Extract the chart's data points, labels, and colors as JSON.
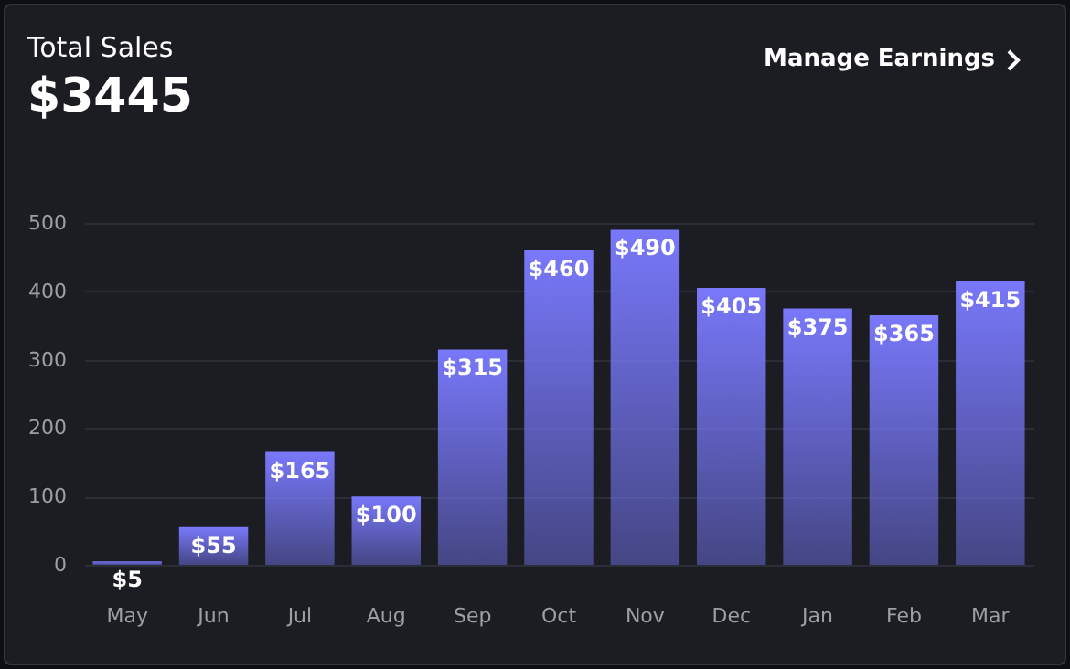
{
  "chart_data": {
    "type": "bar",
    "title": "Total Sales",
    "subtitle": "$3445",
    "annotations": [
      "Manage Earnings"
    ],
    "categories": [
      "May",
      "Jun",
      "Jul",
      "Aug",
      "Sep",
      "Oct",
      "Nov",
      "Dec",
      "Jan",
      "Feb",
      "Mar"
    ],
    "values": [
      5,
      55,
      165,
      100,
      315,
      460,
      490,
      405,
      375,
      365,
      415
    ],
    "value_labels": [
      "$5",
      "$55",
      "$165",
      "$100",
      "$315",
      "$460",
      "$490",
      "$405",
      "$375",
      "$365",
      "$415"
    ],
    "color": "#7878fa",
    "ylim": [
      0,
      500
    ],
    "yticks": [
      0,
      100,
      200,
      300,
      400,
      500
    ],
    "grid": "y"
  }
}
